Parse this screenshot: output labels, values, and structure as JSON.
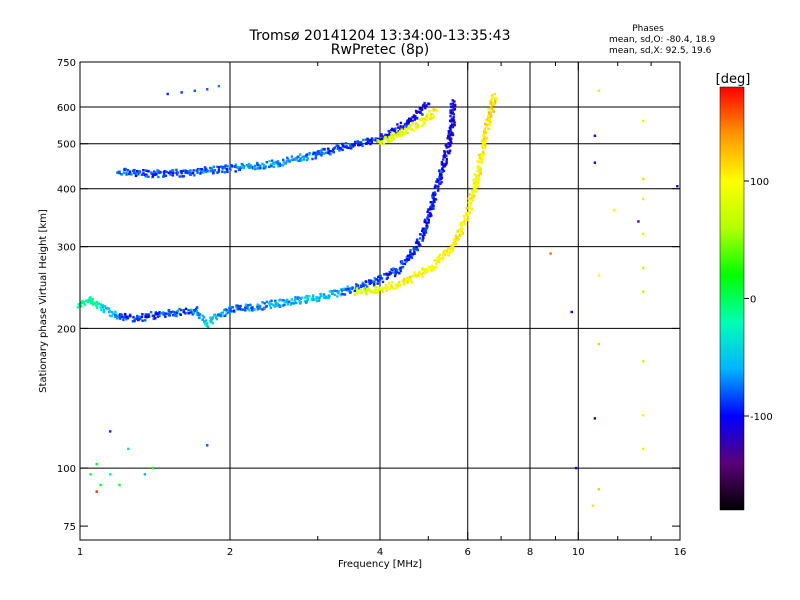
{
  "header": {
    "title_line1": "Tromsø 20141204 13:34:00-13:35:43",
    "title_line2": "RwPretec (8p)"
  },
  "stats": {
    "heading": "Phases",
    "line_o": "mean, sd,O: -80.4, 18.9",
    "line_x": "mean, sd,X:  92.5, 19.6"
  },
  "chart_data": {
    "type": "scatter",
    "title": "Tromsø 20141204 13:34:00-13:35:43",
    "subtitle": "RwPretec (8p)",
    "xlabel": "Frequency [MHz]",
    "ylabel": "Stationary phase Virtual Height [km]",
    "x_scale": "log",
    "y_scale": "log",
    "xlim": [
      1,
      16
    ],
    "ylim": [
      70,
      750
    ],
    "x_ticks": [
      1,
      2,
      4,
      6,
      8,
      10,
      16
    ],
    "x_tick_labels": [
      "1",
      "2",
      "4",
      "6",
      "8",
      "10",
      "16"
    ],
    "x_minor_ticks": [
      3,
      5,
      7,
      9,
      12,
      14
    ],
    "y_ticks": [
      75,
      100,
      200,
      300,
      400,
      500,
      600,
      750
    ],
    "y_tick_labels": [
      "75",
      "100",
      "200",
      "300",
      "400",
      "500",
      "600",
      "750"
    ],
    "x_grid": [
      2,
      4,
      6,
      8,
      10
    ],
    "y_grid": [
      100,
      200,
      300,
      400,
      500,
      600
    ],
    "grid": true,
    "colorbar": {
      "label": "[deg]",
      "range": [
        -180,
        180
      ],
      "ticks": [
        100,
        0,
        -100
      ],
      "tick_labels": [
        "100",
        "0",
        "-100"
      ],
      "colors": [
        "#000000",
        "#5a0078",
        "#0000ff",
        "#00b4ff",
        "#00ffb4",
        "#00ff00",
        "#b4ff00",
        "#ffff00",
        "#ff9600",
        "#ff0000"
      ]
    },
    "series": [
      {
        "values": [
          {
            "x": 1.0,
            "y": 225,
            "phase": -20
          },
          {
            "x": 1.05,
            "y": 230,
            "phase": -10
          },
          {
            "x": 1.1,
            "y": 222,
            "phase": -30
          },
          {
            "x": 1.2,
            "y": 212,
            "phase": -80
          },
          {
            "x": 1.3,
            "y": 210,
            "phase": -90
          },
          {
            "x": 1.4,
            "y": 213,
            "phase": -90
          },
          {
            "x": 1.5,
            "y": 215,
            "phase": -80
          },
          {
            "x": 1.7,
            "y": 218,
            "phase": -80
          },
          {
            "x": 1.8,
            "y": 205,
            "phase": -40
          },
          {
            "x": 2.0,
            "y": 220,
            "phase": -80
          },
          {
            "x": 2.3,
            "y": 223,
            "phase": -70
          },
          {
            "x": 2.6,
            "y": 228,
            "phase": -60
          },
          {
            "x": 3.0,
            "y": 233,
            "phase": -50
          },
          {
            "x": 3.3,
            "y": 238,
            "phase": -60
          },
          {
            "x": 3.6,
            "y": 245,
            "phase": -80
          },
          {
            "x": 4.0,
            "y": 255,
            "phase": -90
          },
          {
            "x": 4.3,
            "y": 265,
            "phase": -90
          },
          {
            "x": 4.6,
            "y": 285,
            "phase": -90
          },
          {
            "x": 4.9,
            "y": 320,
            "phase": -100
          },
          {
            "x": 5.1,
            "y": 370,
            "phase": -100
          },
          {
            "x": 5.3,
            "y": 430,
            "phase": -100
          },
          {
            "x": 5.5,
            "y": 500,
            "phase": -110
          },
          {
            "x": 5.6,
            "y": 560,
            "phase": -110
          },
          {
            "x": 5.6,
            "y": 620,
            "phase": -110
          }
        ]
      },
      {
        "values": [
          {
            "x": 3.6,
            "y": 240,
            "phase": 80
          },
          {
            "x": 4.0,
            "y": 243,
            "phase": 90
          },
          {
            "x": 4.3,
            "y": 248,
            "phase": 95
          },
          {
            "x": 4.6,
            "y": 255,
            "phase": 100
          },
          {
            "x": 5.0,
            "y": 268,
            "phase": 100
          },
          {
            "x": 5.3,
            "y": 282,
            "phase": 100
          },
          {
            "x": 5.6,
            "y": 300,
            "phase": 100
          },
          {
            "x": 5.8,
            "y": 325,
            "phase": 100
          },
          {
            "x": 6.0,
            "y": 355,
            "phase": 100
          },
          {
            "x": 6.2,
            "y": 400,
            "phase": 100
          },
          {
            "x": 6.4,
            "y": 470,
            "phase": 100
          },
          {
            "x": 6.6,
            "y": 560,
            "phase": 110
          },
          {
            "x": 6.8,
            "y": 640,
            "phase": 110
          }
        ]
      },
      {
        "values": [
          {
            "x": 1.2,
            "y": 435,
            "phase": -80
          },
          {
            "x": 1.4,
            "y": 430,
            "phase": -90
          },
          {
            "x": 1.6,
            "y": 432,
            "phase": -90
          },
          {
            "x": 1.8,
            "y": 438,
            "phase": -80
          },
          {
            "x": 2.0,
            "y": 442,
            "phase": -80
          },
          {
            "x": 2.3,
            "y": 448,
            "phase": -70
          },
          {
            "x": 2.6,
            "y": 458,
            "phase": -60
          },
          {
            "x": 3.0,
            "y": 475,
            "phase": -80
          },
          {
            "x": 3.4,
            "y": 492,
            "phase": -90
          },
          {
            "x": 3.8,
            "y": 505,
            "phase": -90
          },
          {
            "x": 4.2,
            "y": 525,
            "phase": -100
          },
          {
            "x": 4.6,
            "y": 560,
            "phase": -100
          },
          {
            "x": 5.0,
            "y": 610,
            "phase": -110
          }
        ]
      },
      {
        "values": [
          {
            "x": 4.0,
            "y": 505,
            "phase": 80
          },
          {
            "x": 4.3,
            "y": 520,
            "phase": 85
          },
          {
            "x": 4.6,
            "y": 540,
            "phase": 90
          },
          {
            "x": 4.9,
            "y": 560,
            "phase": 95
          },
          {
            "x": 5.2,
            "y": 590,
            "phase": 100
          }
        ]
      },
      {
        "values": [
          {
            "x": 1.05,
            "y": 97,
            "phase": 10
          },
          {
            "x": 1.08,
            "y": 102,
            "phase": 10
          },
          {
            "x": 1.1,
            "y": 92,
            "phase": 10
          },
          {
            "x": 1.15,
            "y": 120,
            "phase": -90
          },
          {
            "x": 1.15,
            "y": 97,
            "phase": -30
          },
          {
            "x": 1.2,
            "y": 92,
            "phase": 10
          },
          {
            "x": 1.25,
            "y": 110,
            "phase": -40
          },
          {
            "x": 1.35,
            "y": 97,
            "phase": -60
          },
          {
            "x": 1.4,
            "y": 100,
            "phase": 10
          },
          {
            "x": 1.08,
            "y": 89,
            "phase": 170
          },
          {
            "x": 1.8,
            "y": 112,
            "phase": -80
          }
        ]
      },
      {
        "values": [
          {
            "x": 1.5,
            "y": 640,
            "phase": -90
          },
          {
            "x": 1.6,
            "y": 645,
            "phase": -90
          },
          {
            "x": 1.7,
            "y": 650,
            "phase": -80
          },
          {
            "x": 1.8,
            "y": 655,
            "phase": -80
          },
          {
            "x": 1.9,
            "y": 665,
            "phase": -70
          }
        ]
      },
      {
        "values": [
          {
            "x": 8.8,
            "y": 290,
            "phase": 150
          },
          {
            "x": 9.7,
            "y": 217,
            "phase": -100
          },
          {
            "x": 9.9,
            "y": 100,
            "phase": -100
          },
          {
            "x": 10.8,
            "y": 520,
            "phase": -110
          },
          {
            "x": 10.8,
            "y": 455,
            "phase": -100
          },
          {
            "x": 10.8,
            "y": 128,
            "phase": -150
          },
          {
            "x": 11.0,
            "y": 650,
            "phase": 110
          },
          {
            "x": 11.0,
            "y": 260,
            "phase": 100
          },
          {
            "x": 11.0,
            "y": 185,
            "phase": 120
          },
          {
            "x": 11.0,
            "y": 90,
            "phase": 120
          },
          {
            "x": 10.7,
            "y": 83,
            "phase": 110
          },
          {
            "x": 11.8,
            "y": 360,
            "phase": 100
          },
          {
            "x": 13.5,
            "y": 560,
            "phase": 80
          },
          {
            "x": 13.5,
            "y": 420,
            "phase": 70
          },
          {
            "x": 13.5,
            "y": 380,
            "phase": 80
          },
          {
            "x": 13.5,
            "y": 320,
            "phase": 80
          },
          {
            "x": 13.5,
            "y": 270,
            "phase": 60
          },
          {
            "x": 13.5,
            "y": 240,
            "phase": 60
          },
          {
            "x": 13.5,
            "y": 170,
            "phase": 70
          },
          {
            "x": 13.5,
            "y": 130,
            "phase": 90
          },
          {
            "x": 13.5,
            "y": 110,
            "phase": 80
          },
          {
            "x": 13.2,
            "y": 340,
            "phase": -130
          },
          {
            "x": 15.8,
            "y": 405,
            "phase": -110
          }
        ]
      }
    ]
  }
}
